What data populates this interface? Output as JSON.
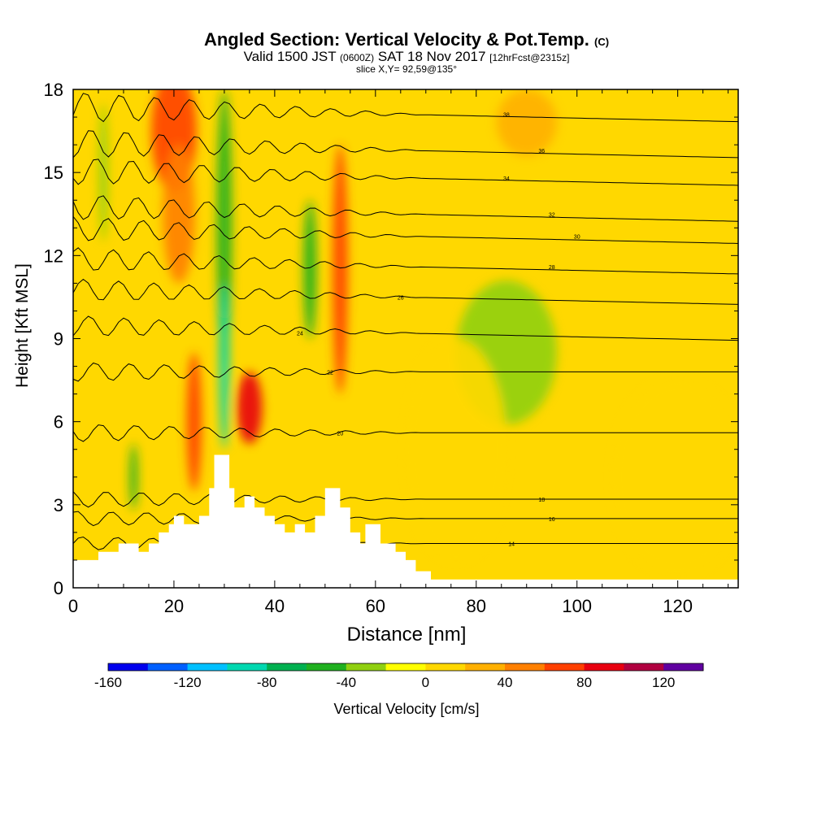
{
  "chart_data": {
    "type": "heatmap",
    "title": "Angled Section: Vertical Velocity & Pot.Temp.",
    "title_mark": "(C)",
    "subtitle_main": "Valid 1500 JST",
    "subtitle_z": "(0600Z)",
    "subtitle_date": "SAT 18 Nov 2017",
    "subtitle_fcst": "[12hrFcst@2315z]",
    "slice": "slice X,Y= 92,59@135°",
    "xlabel": "Distance [nm]",
    "ylabel": "Height [Kft MSL]",
    "xlim": [
      0,
      132
    ],
    "ylim": [
      0,
      18
    ],
    "xticks": [
      "0",
      "20",
      "40",
      "60",
      "80",
      "100",
      "120"
    ],
    "yticks": [
      "0",
      "3",
      "6",
      "9",
      "12",
      "15",
      "18"
    ],
    "colorbar": {
      "label": "Vertical Velocity [cm/s]",
      "range": [
        -160,
        140
      ],
      "step": 20,
      "tick_labels": [
        "-160",
        "-120",
        "-80",
        "-40",
        "0",
        "40",
        "80",
        "120"
      ],
      "colors": [
        "#0000ee",
        "#0060ff",
        "#00c0ff",
        "#00d8b0",
        "#00b050",
        "#20b020",
        "#90d010",
        "#ffff00",
        "#ffd800",
        "#ffb000",
        "#ff8000",
        "#ff4000",
        "#e80010",
        "#b00040",
        "#6000a0"
      ]
    },
    "background_color": "#ffd800",
    "terrain_profile": [
      [
        0,
        1
      ],
      [
        5,
        1
      ],
      [
        5,
        1.3
      ],
      [
        9,
        1.3
      ],
      [
        9,
        1.6
      ],
      [
        13,
        1.6
      ],
      [
        13,
        1.3
      ],
      [
        15,
        1.3
      ],
      [
        15,
        1.6
      ],
      [
        17,
        1.6
      ],
      [
        17,
        2
      ],
      [
        19,
        2
      ],
      [
        19,
        2.3
      ],
      [
        20,
        2.3
      ],
      [
        20,
        2.6
      ],
      [
        22,
        2.6
      ],
      [
        22,
        2.3
      ],
      [
        25,
        2.3
      ],
      [
        25,
        2.6
      ],
      [
        27,
        2.6
      ],
      [
        27,
        3.6
      ],
      [
        28,
        3.6
      ],
      [
        28,
        4.8
      ],
      [
        31,
        4.8
      ],
      [
        31,
        3.6
      ],
      [
        32,
        3.6
      ],
      [
        32,
        2.9
      ],
      [
        34,
        2.9
      ],
      [
        34,
        3.3
      ],
      [
        36,
        3.3
      ],
      [
        36,
        2.9
      ],
      [
        38,
        2.9
      ],
      [
        38,
        2.6
      ],
      [
        40,
        2.6
      ],
      [
        40,
        2.3
      ],
      [
        42,
        2.3
      ],
      [
        42,
        2
      ],
      [
        44,
        2
      ],
      [
        44,
        2.3
      ],
      [
        46,
        2.3
      ],
      [
        46,
        2
      ],
      [
        48,
        2
      ],
      [
        48,
        2.6
      ],
      [
        50,
        2.6
      ],
      [
        50,
        3.6
      ],
      [
        53,
        3.6
      ],
      [
        53,
        2.9
      ],
      [
        55,
        2.9
      ],
      [
        55,
        2
      ],
      [
        57,
        2
      ],
      [
        57,
        1.6
      ],
      [
        58,
        1.6
      ],
      [
        58,
        2.3
      ],
      [
        61,
        2.3
      ],
      [
        61,
        1.6
      ],
      [
        64,
        1.6
      ],
      [
        64,
        1.3
      ],
      [
        66,
        1.3
      ],
      [
        66,
        1
      ],
      [
        68,
        1
      ],
      [
        68,
        0.6
      ],
      [
        71,
        0.6
      ],
      [
        71,
        0.3
      ],
      [
        132,
        0.3
      ]
    ],
    "velocity_blobs": [
      {
        "x": 20,
        "y": 16.5,
        "rx": 4.5,
        "ry": 2.2,
        "value": 60
      },
      {
        "x": 21,
        "y": 13.5,
        "rx": 3.2,
        "ry": 2.5,
        "value": 45
      },
      {
        "x": 30,
        "y": 13,
        "rx": 1.5,
        "ry": 5,
        "value": -60
      },
      {
        "x": 30,
        "y": 8,
        "rx": 1,
        "ry": 3,
        "value": -90
      },
      {
        "x": 35,
        "y": 6.5,
        "rx": 2.5,
        "ry": 1.3,
        "value": 85
      },
      {
        "x": 24,
        "y": 6,
        "rx": 1.5,
        "ry": 2.5,
        "value": 70
      },
      {
        "x": 53,
        "y": 11.5,
        "rx": 1.5,
        "ry": 4.5,
        "value": 60
      },
      {
        "x": 47,
        "y": 11.5,
        "rx": 1.3,
        "ry": 2.5,
        "value": -45
      },
      {
        "x": 86,
        "y": 8.5,
        "rx": 10,
        "ry": 2.6,
        "value": -30
      },
      {
        "x": 6,
        "y": 15,
        "rx": 0.9,
        "ry": 2.5,
        "value": -35
      },
      {
        "x": 12,
        "y": 4,
        "rx": 0.8,
        "ry": 1.2,
        "value": -60
      },
      {
        "x": 90,
        "y": 16.8,
        "rx": 6,
        "ry": 1.2,
        "value": 35
      },
      {
        "x": 120,
        "y": 4,
        "rx": 13,
        "ry": 3.5,
        "value": 5
      },
      {
        "x": 76,
        "y": 5,
        "rx": 10,
        "ry": 4,
        "value": 5
      }
    ],
    "isentropes": [
      {
        "label": "14",
        "base_y": 1.6,
        "label_x": 87
      },
      {
        "label": "16",
        "base_y": 2.5,
        "label_x": 95
      },
      {
        "label": "18",
        "base_y": 3.2,
        "label_x": 93
      },
      {
        "label": "20",
        "base_y": 5.6,
        "label_x": 53
      },
      {
        "label": "22",
        "base_y": 7.8,
        "label_x": 51
      },
      {
        "label": "24",
        "base_y": 9.2,
        "label_x": 45
      },
      {
        "label": "26",
        "base_y": 10.5,
        "label_x": 65
      },
      {
        "label": "28",
        "base_y": 11.6,
        "label_x": 95
      },
      {
        "label": "30",
        "base_y": 12.7,
        "label_x": 100
      },
      {
        "label": "32",
        "base_y": 13.5,
        "label_x": 95
      },
      {
        "label": "34",
        "base_y": 14.8,
        "label_x": 86
      },
      {
        "label": "36",
        "base_y": 15.8,
        "label_x": 93
      },
      {
        "label": "38",
        "base_y": 17.1,
        "label_x": 86
      }
    ]
  }
}
